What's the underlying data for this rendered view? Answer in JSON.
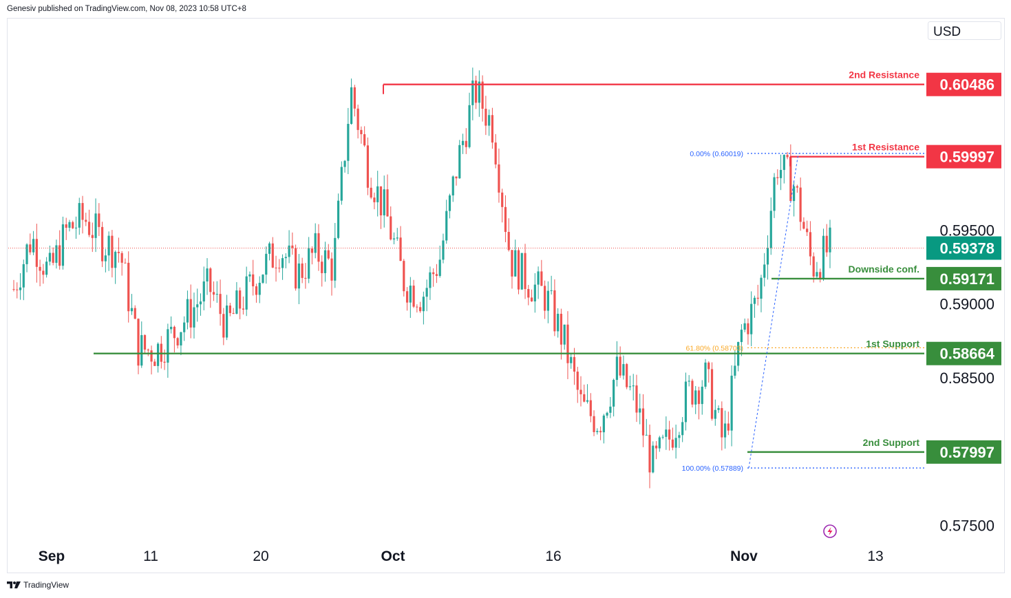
{
  "header": {
    "published_text": "Genesiv published on TradingView.com, Nov 08, 2023 10:58 UTC+8"
  },
  "footer": {
    "brand": "TradingView",
    "logo_icon": "tradingview-logo-icon"
  },
  "currency_label": "USD",
  "colors": {
    "up": "#26a69a",
    "down": "#ef5350",
    "resistance": "#f23645",
    "support": "#388e3c",
    "fib_blue": "#2962ff",
    "fib_gold": "#f9a825",
    "current": "#089981"
  },
  "chart_data": {
    "type": "candlestick",
    "symbol_currency": "USD",
    "x_axis_labels": [
      "Sep",
      "11",
      "20",
      "Oct",
      "16",
      "Nov",
      "13"
    ],
    "y_axis_ticks": [
      "0.59500",
      "0.59000",
      "0.58500",
      "0.57500"
    ],
    "ylim": [
      0.5735,
      0.6075
    ],
    "grid": false,
    "levels": [
      {
        "name": "2nd Resistance",
        "value": 0.60486,
        "label": "0.60486",
        "type": "resistance"
      },
      {
        "name": "1st Resistance",
        "value": 0.59997,
        "label": "0.59997",
        "type": "resistance"
      },
      {
        "name": "Downside conf.",
        "value": 0.59171,
        "label": "0.59171",
        "type": "support"
      },
      {
        "name": "1st Support",
        "value": 0.58664,
        "label": "0.58664",
        "type": "support"
      },
      {
        "name": "2nd Support",
        "value": 0.57997,
        "label": "0.57997",
        "type": "support"
      }
    ],
    "current_price": {
      "value": 0.59378,
      "label": "0.59378"
    },
    "fibonacci": [
      {
        "label": "0.00% (0.60019)",
        "value": 0.60019
      },
      {
        "label": "61.80% (0.58703)",
        "value": 0.58703
      },
      {
        "label": "100.00% (0.57889)",
        "value": 0.57889
      }
    ],
    "price_path": [
      0.591,
      0.5945,
      0.592,
      0.595,
      0.5958,
      0.5942,
      0.5935,
      0.587,
      0.5868,
      0.588,
      0.5895,
      0.5912,
      0.5885,
      0.5905,
      0.5924,
      0.5938,
      0.592,
      0.5935,
      0.5925,
      0.6045,
      0.599,
      0.596,
      0.5915,
      0.5905,
      0.593,
      0.5995,
      0.6045,
      0.602,
      0.593,
      0.5915,
      0.5905,
      0.5875,
      0.583,
      0.582,
      0.5855,
      0.5835,
      0.579,
      0.581,
      0.584,
      0.585,
      0.5805,
      0.588,
      0.5905,
      0.5995,
      0.598,
      0.5925,
      0.5938
    ]
  }
}
